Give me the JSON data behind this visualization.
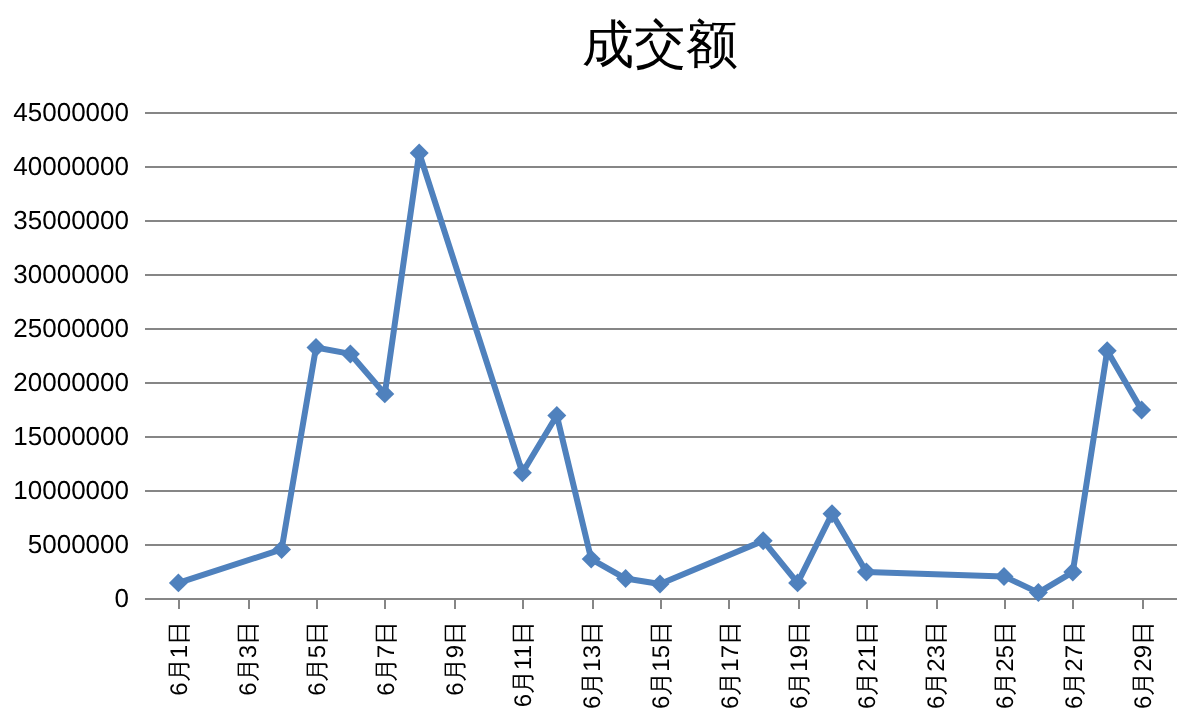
{
  "chart_data": {
    "type": "line",
    "title": "成交额",
    "x": [
      "--06-01",
      "--06-04",
      "--06-05",
      "--06-06",
      "--06-07",
      "--06-08",
      "--06-11",
      "--06-12",
      "--06-13",
      "--06-14",
      "--06-15",
      "--06-18",
      "--06-19",
      "--06-20",
      "--06-21",
      "--06-25",
      "--06-26",
      "--06-27",
      "--06-28",
      "--06-29"
    ],
    "series": [
      {
        "color": "#4f81bd",
        "values": [
          1400000,
          4500000,
          23200000,
          22600000,
          18900000,
          41200000,
          11600000,
          16900000,
          3600000,
          1800000,
          1300000,
          5300000,
          1400000,
          7800000,
          2400000,
          2000000,
          500000,
          2400000,
          22900000,
          17400000
        ]
      }
    ],
    "xlim": [
      "--05-31",
      "--06-30"
    ],
    "xticks": [
      {
        "value": "--06-01",
        "label": "6月1日"
      },
      {
        "value": "--06-03",
        "label": "6月3日"
      },
      {
        "value": "--06-05",
        "label": "6月5日"
      },
      {
        "value": "--06-07",
        "label": "6月7日"
      },
      {
        "value": "--06-09",
        "label": "6月9日"
      },
      {
        "value": "--06-11",
        "label": "6月11日"
      },
      {
        "value": "--06-13",
        "label": "6月13日"
      },
      {
        "value": "--06-15",
        "label": "6月15日"
      },
      {
        "value": "--06-17",
        "label": "6月17日"
      },
      {
        "value": "--06-19",
        "label": "6月19日"
      },
      {
        "value": "--06-21",
        "label": "6月21日"
      },
      {
        "value": "--06-23",
        "label": "6月23日"
      },
      {
        "value": "--06-25",
        "label": "6月25日"
      },
      {
        "value": "--06-27",
        "label": "6月27日"
      },
      {
        "value": "--06-29",
        "label": "6月29日"
      }
    ],
    "ylim": [
      0,
      45000000
    ],
    "yticks": [
      0,
      5000000,
      10000000,
      15000000,
      20000000,
      25000000,
      30000000,
      35000000,
      40000000,
      45000000
    ],
    "grid": "y",
    "marker": "diamond",
    "legend": false
  }
}
